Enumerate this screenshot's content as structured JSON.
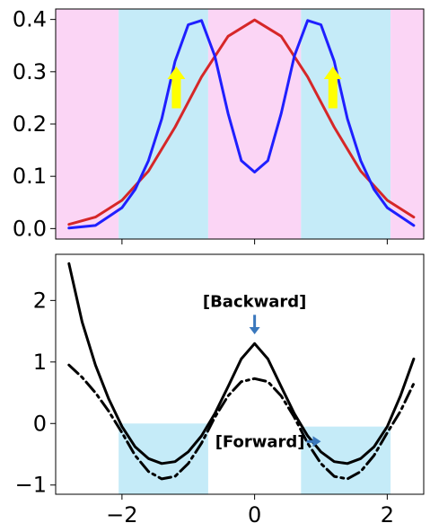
{
  "chart_data": [
    {
      "type": "line",
      "title": "",
      "xlabel": "",
      "ylabel": "",
      "xlim": [
        -3.0,
        2.55
      ],
      "ylim": [
        -0.02,
        0.42
      ],
      "x_ticks": [
        -2,
        0,
        2
      ],
      "x_tick_labels_shown": false,
      "y_ticks": [
        0.0,
        0.1,
        0.2,
        0.3,
        0.4
      ],
      "y_tick_labels": [
        "0.0",
        "0.1",
        "0.2",
        "0.3",
        "0.4"
      ],
      "grid": false,
      "background_bands": [
        {
          "from": -3.0,
          "to": -2.05,
          "color": "#fbd5f5"
        },
        {
          "from": -2.05,
          "to": -0.7,
          "color": "#c5ebf8"
        },
        {
          "from": -0.7,
          "to": 0.7,
          "color": "#fbd5f5"
        },
        {
          "from": 0.7,
          "to": 2.05,
          "color": "#c5ebf8"
        },
        {
          "from": 2.05,
          "to": 2.55,
          "color": "#fbd5f5"
        }
      ],
      "series": [
        {
          "color": "#d62728",
          "x": [
            -2.8,
            -2.4,
            -2.0,
            -1.6,
            -1.2,
            -0.8,
            -0.4,
            0.0,
            0.4,
            0.8,
            1.2,
            1.6,
            2.0,
            2.4
          ],
          "y": [
            0.008,
            0.022,
            0.054,
            0.11,
            0.194,
            0.29,
            0.368,
            0.399,
            0.368,
            0.29,
            0.194,
            0.11,
            0.054,
            0.022
          ]
        },
        {
          "color": "#1f1fff",
          "x": [
            -2.8,
            -2.4,
            -2.0,
            -1.8,
            -1.6,
            -1.4,
            -1.2,
            -1.0,
            -0.8,
            -0.6,
            -0.4,
            -0.2,
            0.0,
            0.2,
            0.4,
            0.6,
            0.8,
            1.0,
            1.2,
            1.4,
            1.6,
            1.8,
            2.0,
            2.4
          ],
          "y": [
            0.001,
            0.006,
            0.04,
            0.075,
            0.13,
            0.21,
            0.32,
            0.39,
            0.398,
            0.33,
            0.22,
            0.13,
            0.108,
            0.13,
            0.22,
            0.33,
            0.398,
            0.39,
            0.32,
            0.21,
            0.13,
            0.075,
            0.04,
            0.006
          ]
        }
      ],
      "arrows": [
        {
          "x": -1.18,
          "y_from": 0.23,
          "y_to": 0.31,
          "color": "#ffff00"
        },
        {
          "x": 1.18,
          "y_from": 0.23,
          "y_to": 0.31,
          "color": "#ffff00"
        }
      ]
    },
    {
      "type": "line",
      "title": "",
      "xlabel": "",
      "ylabel": "",
      "xlim": [
        -3.0,
        2.55
      ],
      "ylim": [
        -1.15,
        2.75
      ],
      "x_ticks": [
        -2,
        0,
        2
      ],
      "x_tick_labels": [
        "−2",
        "0",
        "2"
      ],
      "y_ticks": [
        -1,
        0,
        1,
        2
      ],
      "y_tick_labels": [
        "−1",
        "0",
        "1",
        "2"
      ],
      "grid": false,
      "shaded_regions": [
        {
          "x_from": -2.05,
          "x_to": -0.7,
          "y_from": -1.15,
          "y_to": 0.0,
          "color": "#c5ebf8"
        },
        {
          "x_from": 0.7,
          "x_to": 2.05,
          "y_from": -1.15,
          "y_to": -0.05,
          "color": "#c5ebf8"
        }
      ],
      "series": [
        {
          "style": "solid",
          "color": "#000000",
          "x": [
            -2.8,
            -2.6,
            -2.4,
            -2.2,
            -2.0,
            -1.8,
            -1.6,
            -1.4,
            -1.2,
            -1.0,
            -0.8,
            -0.6,
            -0.4,
            -0.2,
            0.0,
            0.2,
            0.4,
            0.6,
            0.8,
            1.0,
            1.2,
            1.4,
            1.6,
            1.8,
            2.0,
            2.2,
            2.4
          ],
          "y": [
            2.6,
            1.65,
            0.95,
            0.4,
            -0.05,
            -0.38,
            -0.57,
            -0.65,
            -0.62,
            -0.46,
            -0.2,
            0.16,
            0.6,
            1.05,
            1.3,
            1.05,
            0.6,
            0.16,
            -0.2,
            -0.46,
            -0.62,
            -0.65,
            -0.57,
            -0.38,
            -0.05,
            0.45,
            1.05
          ]
        },
        {
          "style": "dashdot",
          "color": "#000000",
          "x": [
            -2.8,
            -2.6,
            -2.4,
            -2.2,
            -2.0,
            -1.8,
            -1.6,
            -1.4,
            -1.2,
            -1.0,
            -0.8,
            -0.6,
            -0.4,
            -0.2,
            0.0,
            0.2,
            0.4,
            0.6,
            0.8,
            1.0,
            1.2,
            1.4,
            1.6,
            1.8,
            2.0,
            2.2,
            2.4
          ],
          "y": [
            0.95,
            0.75,
            0.5,
            0.2,
            -0.15,
            -0.52,
            -0.78,
            -0.9,
            -0.86,
            -0.65,
            -0.32,
            0.1,
            0.45,
            0.68,
            0.73,
            0.68,
            0.45,
            0.1,
            -0.32,
            -0.65,
            -0.86,
            -0.9,
            -0.78,
            -0.52,
            -0.15,
            0.2,
            0.65
          ]
        }
      ],
      "annotations": [
        {
          "text": "[Backward]",
          "x": 0.0,
          "y": 2.0,
          "arrow_to_y": 1.45
        },
        {
          "text": "[Forward]",
          "x": 0.0,
          "y": -0.38,
          "arrow_to_x": 1.0
        }
      ]
    }
  ]
}
